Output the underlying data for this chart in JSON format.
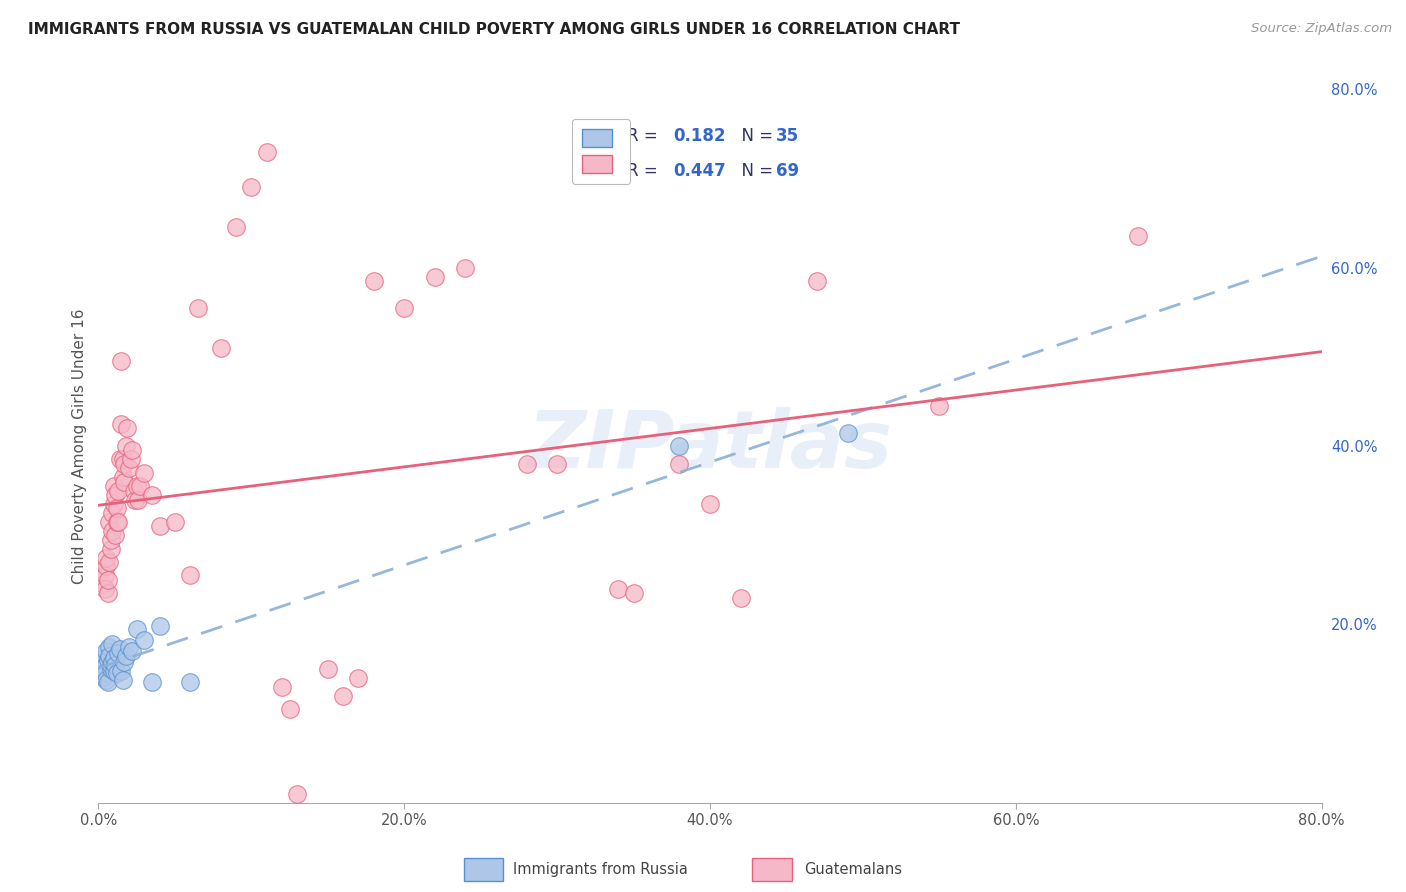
{
  "title": "IMMIGRANTS FROM RUSSIA VS GUATEMALAN CHILD POVERTY AMONG GIRLS UNDER 16 CORRELATION CHART",
  "source": "Source: ZipAtlas.com",
  "ylabel": "Child Poverty Among Girls Under 16",
  "xlim": [
    0.0,
    0.8
  ],
  "ylim": [
    0.0,
    0.8
  ],
  "xtick_labels": [
    "0.0%",
    "20.0%",
    "40.0%",
    "60.0%",
    "80.0%"
  ],
  "xtick_vals": [
    0.0,
    0.2,
    0.4,
    0.6,
    0.8
  ],
  "ytick_vals_right": [
    0.2,
    0.4,
    0.6,
    0.8
  ],
  "ytick_labels_right": [
    "20.0%",
    "40.0%",
    "60.0%",
    "80.0%"
  ],
  "legend_r_blue": "0.182",
  "legend_n_blue": "35",
  "legend_r_pink": "0.447",
  "legend_n_pink": "69",
  "blue_fill": "#aec6e8",
  "pink_fill": "#f5b8c8",
  "blue_edge": "#5590d0",
  "pink_edge": "#e8607a",
  "blue_line": "#6090d8",
  "pink_line": "#e8607a",
  "blue_scatter": [
    [
      0.001,
      0.155
    ],
    [
      0.002,
      0.148
    ],
    [
      0.003,
      0.162
    ],
    [
      0.003,
      0.141
    ],
    [
      0.004,
      0.153
    ],
    [
      0.004,
      0.145
    ],
    [
      0.005,
      0.138
    ],
    [
      0.005,
      0.17
    ],
    [
      0.006,
      0.16
    ],
    [
      0.006,
      0.135
    ],
    [
      0.007,
      0.175
    ],
    [
      0.007,
      0.165
    ],
    [
      0.008,
      0.15
    ],
    [
      0.008,
      0.155
    ],
    [
      0.009,
      0.178
    ],
    [
      0.009,
      0.158
    ],
    [
      0.01,
      0.148
    ],
    [
      0.01,
      0.162
    ],
    [
      0.011,
      0.155
    ],
    [
      0.012,
      0.145
    ],
    [
      0.013,
      0.168
    ],
    [
      0.014,
      0.172
    ],
    [
      0.015,
      0.148
    ],
    [
      0.016,
      0.138
    ],
    [
      0.017,
      0.158
    ],
    [
      0.018,
      0.165
    ],
    [
      0.02,
      0.175
    ],
    [
      0.022,
      0.17
    ],
    [
      0.025,
      0.195
    ],
    [
      0.03,
      0.182
    ],
    [
      0.035,
      0.135
    ],
    [
      0.04,
      0.198
    ],
    [
      0.06,
      0.135
    ],
    [
      0.38,
      0.4
    ],
    [
      0.49,
      0.415
    ]
  ],
  "pink_scatter": [
    [
      0.002,
      0.26
    ],
    [
      0.003,
      0.245
    ],
    [
      0.004,
      0.255
    ],
    [
      0.004,
      0.24
    ],
    [
      0.005,
      0.265
    ],
    [
      0.005,
      0.275
    ],
    [
      0.006,
      0.235
    ],
    [
      0.006,
      0.25
    ],
    [
      0.007,
      0.27
    ],
    [
      0.007,
      0.315
    ],
    [
      0.008,
      0.285
    ],
    [
      0.008,
      0.295
    ],
    [
      0.009,
      0.325
    ],
    [
      0.009,
      0.305
    ],
    [
      0.01,
      0.335
    ],
    [
      0.01,
      0.355
    ],
    [
      0.011,
      0.345
    ],
    [
      0.011,
      0.3
    ],
    [
      0.012,
      0.315
    ],
    [
      0.012,
      0.33
    ],
    [
      0.013,
      0.35
    ],
    [
      0.013,
      0.315
    ],
    [
      0.014,
      0.385
    ],
    [
      0.015,
      0.425
    ],
    [
      0.015,
      0.495
    ],
    [
      0.016,
      0.385
    ],
    [
      0.016,
      0.365
    ],
    [
      0.017,
      0.38
    ],
    [
      0.017,
      0.36
    ],
    [
      0.018,
      0.4
    ],
    [
      0.019,
      0.42
    ],
    [
      0.02,
      0.375
    ],
    [
      0.021,
      0.385
    ],
    [
      0.022,
      0.395
    ],
    [
      0.023,
      0.35
    ],
    [
      0.024,
      0.34
    ],
    [
      0.025,
      0.355
    ],
    [
      0.026,
      0.34
    ],
    [
      0.027,
      0.355
    ],
    [
      0.03,
      0.37
    ],
    [
      0.035,
      0.345
    ],
    [
      0.04,
      0.31
    ],
    [
      0.05,
      0.315
    ],
    [
      0.06,
      0.255
    ],
    [
      0.065,
      0.555
    ],
    [
      0.08,
      0.51
    ],
    [
      0.09,
      0.645
    ],
    [
      0.1,
      0.69
    ],
    [
      0.11,
      0.73
    ],
    [
      0.12,
      0.13
    ],
    [
      0.125,
      0.105
    ],
    [
      0.13,
      0.01
    ],
    [
      0.15,
      0.15
    ],
    [
      0.16,
      0.12
    ],
    [
      0.17,
      0.14
    ],
    [
      0.18,
      0.585
    ],
    [
      0.2,
      0.555
    ],
    [
      0.22,
      0.59
    ],
    [
      0.24,
      0.6
    ],
    [
      0.28,
      0.38
    ],
    [
      0.3,
      0.38
    ],
    [
      0.34,
      0.24
    ],
    [
      0.35,
      0.235
    ],
    [
      0.38,
      0.38
    ],
    [
      0.4,
      0.335
    ],
    [
      0.42,
      0.23
    ],
    [
      0.47,
      0.585
    ],
    [
      0.55,
      0.445
    ],
    [
      0.68,
      0.635
    ]
  ],
  "watermark": "ZIPatlas",
  "bg_color": "#ffffff",
  "grid_color": "#cccccc",
  "legend_text_color": "#3366cc",
  "legend_label_color": "#333333"
}
